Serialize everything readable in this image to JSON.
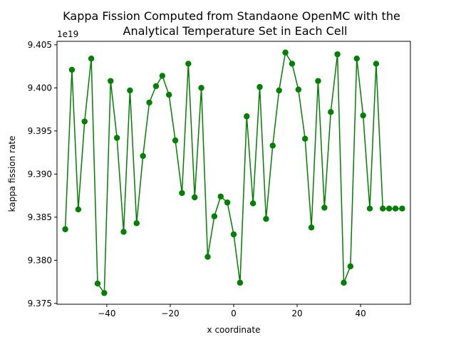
{
  "chart_data": {
    "type": "line",
    "title_lines": [
      "Kappa Fission Computed from Standaone OpenMC with the",
      "Analytical Temperature Set in Each Cell"
    ],
    "xlabel": "x coordinate",
    "ylabel": "kappa fission rate",
    "y_offset_label": "1e19",
    "y_scale_multiplier": 1e+19,
    "xlim": [
      -55.7,
      55.7
    ],
    "ylim": [
      9.3749,
      9.4054
    ],
    "xticks": [
      -40,
      -20,
      0,
      20,
      40
    ],
    "xtick_labels": [
      "−40",
      "−20",
      "0",
      "20",
      "40"
    ],
    "yticks": [
      9.375,
      9.38,
      9.385,
      9.39,
      9.395,
      9.4,
      9.405
    ],
    "ytick_labels": [
      "9.375",
      "9.380",
      "9.385",
      "9.390",
      "9.395",
      "9.400",
      "9.405"
    ],
    "grid": false,
    "legend": false,
    "colors": {
      "series": "#008000",
      "axes": "#000000",
      "background": "#ffffff"
    },
    "series": [
      {
        "marker": "circle",
        "x": [
          -53.1,
          -51.0,
          -49.0,
          -47.0,
          -44.9,
          -42.9,
          -40.8,
          -38.8,
          -36.8,
          -34.7,
          -32.7,
          -30.6,
          -28.6,
          -26.6,
          -24.5,
          -22.5,
          -20.4,
          -18.4,
          -16.3,
          -14.3,
          -12.3,
          -10.2,
          -8.2,
          -6.1,
          -4.1,
          -2.0,
          0.0,
          2.0,
          4.1,
          6.1,
          8.2,
          10.2,
          12.3,
          14.3,
          16.3,
          18.4,
          20.4,
          22.5,
          24.5,
          26.6,
          28.6,
          30.6,
          32.7,
          34.7,
          36.8,
          38.8,
          40.8,
          42.9,
          44.9,
          47.0,
          49.0,
          51.0,
          53.1
        ],
        "y": [
          9.3836,
          9.4021,
          9.3859,
          9.3961,
          9.4034,
          9.3773,
          9.3762,
          9.4008,
          9.3942,
          9.3833,
          9.3997,
          9.3843,
          9.3921,
          9.3983,
          9.4002,
          9.4014,
          9.3992,
          9.3939,
          9.3878,
          9.4028,
          9.3873,
          9.4,
          9.3804,
          9.3851,
          9.3874,
          9.3867,
          9.383,
          9.3774,
          9.3967,
          9.3866,
          9.4001,
          9.3848,
          9.3933,
          9.3997,
          9.4041,
          9.4028,
          9.3998,
          9.3941,
          9.3838,
          9.4008,
          9.3861,
          9.3972,
          9.4039,
          9.3774,
          9.3793,
          9.4034,
          9.3968,
          9.386,
          9.4028,
          9.386,
          9.386,
          9.386,
          9.386
        ]
      }
    ]
  }
}
